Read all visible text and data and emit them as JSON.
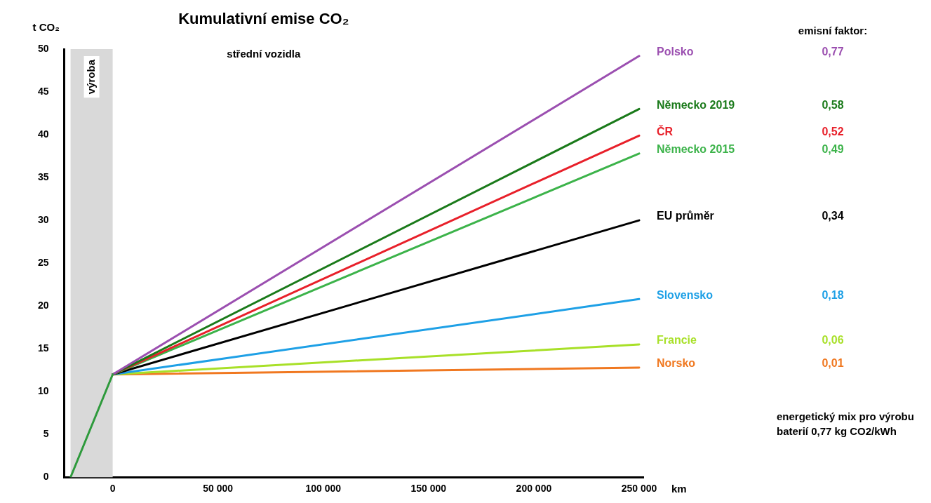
{
  "chart_data": {
    "type": "line",
    "title": "Kumulativní emise CO₂",
    "subtitle": "střední vozidla",
    "ylabel": "t CO₂",
    "xlabel": "km",
    "legend_title": "emisní faktor:",
    "xlim": [
      -23000,
      252000
    ],
    "xticks": [
      {
        "value": 0,
        "label": "0"
      },
      {
        "value": 50000,
        "label": "50 000"
      },
      {
        "value": 100000,
        "label": "100 000"
      },
      {
        "value": 150000,
        "label": "150 000"
      },
      {
        "value": 200000,
        "label": "200 000"
      },
      {
        "value": 250000,
        "label": "250 000"
      }
    ],
    "ylim": [
      0,
      50
    ],
    "yticks": [
      0,
      5,
      10,
      15,
      20,
      25,
      30,
      35,
      40,
      45,
      50
    ],
    "grid": false,
    "legend": false,
    "marker": "none",
    "line_style": "solid",
    "bands": [
      {
        "axis": "x",
        "from": -20000,
        "to": 0,
        "label": "výroba",
        "color": "#d9d9d9"
      }
    ],
    "series": [
      {
        "color": "#2e9a3c",
        "x": [
          -20000,
          0
        ],
        "values": [
          0,
          12
        ]
      },
      {
        "name": "Polsko",
        "color": "#9b4fb0",
        "x": [
          0,
          250000
        ],
        "values": [
          12,
          49.2
        ]
      },
      {
        "name": "Německo 2019",
        "color": "#1a7a1a",
        "x": [
          0,
          250000
        ],
        "values": [
          12,
          43
        ]
      },
      {
        "name": "ČR",
        "color": "#e8202a",
        "x": [
          0,
          250000
        ],
        "values": [
          12,
          39.9
        ]
      },
      {
        "name": "Německo 2015",
        "color": "#3cb34a",
        "x": [
          0,
          250000
        ],
        "values": [
          12,
          37.8
        ]
      },
      {
        "name": "EU průměr",
        "color": "#000000",
        "x": [
          0,
          250000
        ],
        "values": [
          12,
          30
        ]
      },
      {
        "name": "Slovensko",
        "color": "#1ea0e6",
        "x": [
          0,
          250000
        ],
        "values": [
          12,
          20.8
        ]
      },
      {
        "name": "Francie",
        "color": "#a8e028",
        "x": [
          0,
          250000
        ],
        "values": [
          12,
          15.5
        ]
      },
      {
        "name": "Norsko",
        "color": "#f07820",
        "x": [
          0,
          250000
        ],
        "values": [
          12,
          12.8
        ]
      }
    ],
    "annotations": [
      "0,77",
      "0,58",
      "0,52",
      "0,49",
      "0,34",
      "0,18",
      "0,06",
      "0,01",
      "energetický mix pro výrobu",
      "baterií 0,77 kg CO2/kWh"
    ]
  }
}
